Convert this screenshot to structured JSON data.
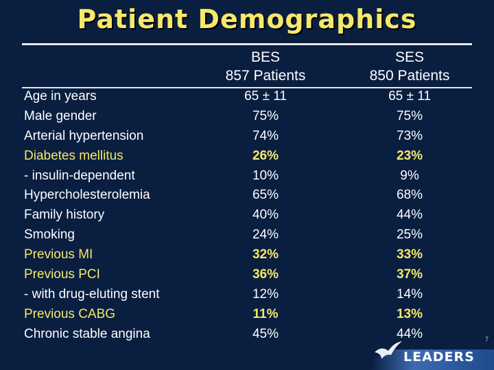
{
  "title": "Patient Demographics",
  "columns": [
    {
      "line1": "BES",
      "line2": "857 Patients"
    },
    {
      "line1": "SES",
      "line2": "850 Patients"
    }
  ],
  "rows": [
    {
      "label": "Age in years",
      "bes": "65 ± 11",
      "ses": "65 ± 11",
      "highlight": false
    },
    {
      "label": "Male gender",
      "bes": "75%",
      "ses": "75%",
      "highlight": false
    },
    {
      "label": "Arterial hypertension",
      "bes": "74%",
      "ses": "73%",
      "highlight": false
    },
    {
      "label": "Diabetes mellitus",
      "bes": "26%",
      "ses": "23%",
      "highlight": true
    },
    {
      "label": "- insulin-dependent",
      "bes": "10%",
      "ses": "9%",
      "highlight": false
    },
    {
      "label": "Hypercholesterolemia",
      "bes": "65%",
      "ses": "68%",
      "highlight": false
    },
    {
      "label": "Family history",
      "bes": "40%",
      "ses": "44%",
      "highlight": false
    },
    {
      "label": "Smoking",
      "bes": "24%",
      "ses": "25%",
      "highlight": false
    },
    {
      "label": "Previous MI",
      "bes": "32%",
      "ses": "33%",
      "highlight": true
    },
    {
      "label": "Previous PCI",
      "bes": "36%",
      "ses": "37%",
      "highlight": true
    },
    {
      "label": "- with drug-eluting stent",
      "bes": "12%",
      "ses": "14%",
      "highlight": false
    },
    {
      "label": "Previous CABG",
      "bes": "11%",
      "ses": "13%",
      "highlight": true
    },
    {
      "label": "Chronic stable angina",
      "bes": "45%",
      "ses": "44%",
      "highlight": false
    }
  ],
  "page_number": "7",
  "logo_text": "LEADERS",
  "colors": {
    "background": "#0a1e40",
    "highlight": "#f5e86a",
    "text": "#ffffff"
  }
}
